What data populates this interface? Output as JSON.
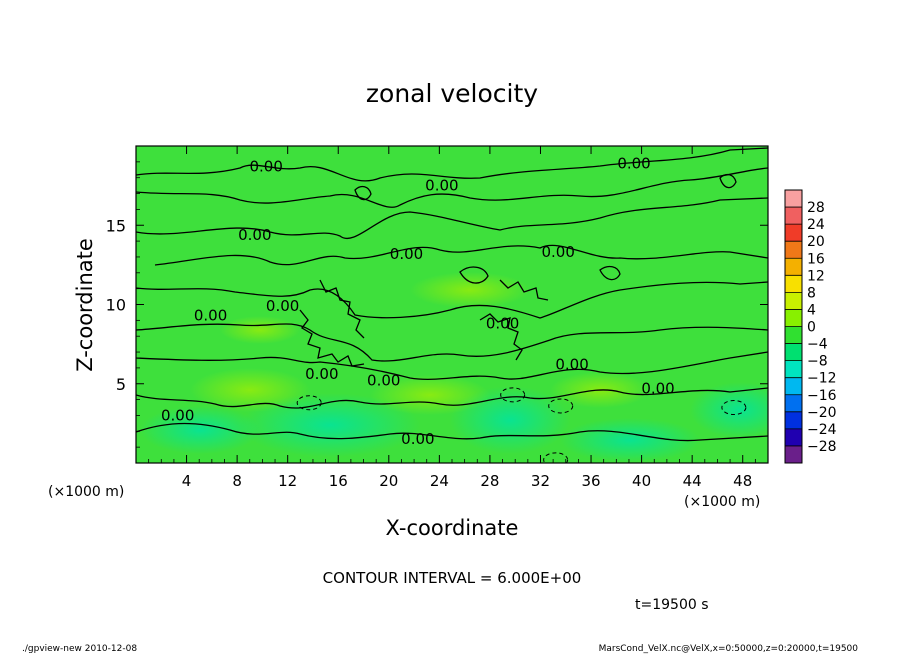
{
  "chart_data": {
    "type": "heatmap",
    "title": "zonal velocity",
    "xlabel": "X-coordinate",
    "ylabel": "Z-coordinate",
    "x_unit_label": "(×1000 m)",
    "y_unit_label": "(×1000 m)",
    "xlim": [
      0,
      50
    ],
    "ylim": [
      0,
      20
    ],
    "x_ticks": [
      4,
      8,
      12,
      16,
      20,
      24,
      28,
      32,
      36,
      40,
      44,
      48
    ],
    "y_ticks": [
      5,
      10,
      15
    ],
    "colorbar": {
      "labels": [
        "28",
        "24",
        "20",
        "16",
        "12",
        "8",
        "4",
        "0",
        "−4",
        "−8",
        "−12",
        "−16",
        "−20",
        "−24",
        "−28"
      ],
      "colors": [
        "#f8a0a0",
        "#f06060",
        "#f03c28",
        "#f07818",
        "#f4b000",
        "#f8e000",
        "#c8f000",
        "#88f000",
        "#30e030",
        "#00e070",
        "#00e4c0",
        "#00b8f0",
        "#0070f0",
        "#0030e0",
        "#2000b0",
        "#6a1f8a"
      ]
    },
    "field_range_approx": [
      -8,
      4
    ],
    "contour_labels": [
      {
        "text": "0.00",
        "x": 10.3,
        "z": 18.7
      },
      {
        "text": "0.00",
        "x": 24.2,
        "z": 17.5
      },
      {
        "text": "0.00",
        "x": 39.4,
        "z": 18.9
      },
      {
        "text": "0.00",
        "x": 9.4,
        "z": 14.4
      },
      {
        "text": "0.00",
        "x": 21.4,
        "z": 13.2
      },
      {
        "text": "0.00",
        "x": 33.4,
        "z": 13.3
      },
      {
        "text": "0.00",
        "x": 5.9,
        "z": 9.3
      },
      {
        "text": "0.00",
        "x": 11.6,
        "z": 9.9
      },
      {
        "text": "0.00",
        "x": 29.0,
        "z": 8.8
      },
      {
        "text": "0.00",
        "x": 14.7,
        "z": 5.6
      },
      {
        "text": "0.00",
        "x": 19.6,
        "z": 5.2
      },
      {
        "text": "0.00",
        "x": 34.5,
        "z": 6.2
      },
      {
        "text": "0.00",
        "x": 41.3,
        "z": 4.7
      },
      {
        "text": "0.00",
        "x": 3.3,
        "z": 3.0
      },
      {
        "text": "0.00",
        "x": 22.3,
        "z": 1.5
      }
    ],
    "negative_contours": [
      {
        "x": 13.7,
        "z": 3.8
      },
      {
        "x": 29.8,
        "z": 4.3
      },
      {
        "x": 33.6,
        "z": 3.6
      },
      {
        "x": 47.3,
        "z": 3.5
      },
      {
        "x": 33.2,
        "z": 0.2
      }
    ],
    "contour_interval_text": "CONTOUR INTERVAL = 6.000E+00",
    "time_text": "t=19500 s",
    "footer_left": "./gpview-new  2010-12-08",
    "footer_right": "MarsCond_VelX.nc@VelX,x=0:50000,z=0:20000,t=19500"
  }
}
